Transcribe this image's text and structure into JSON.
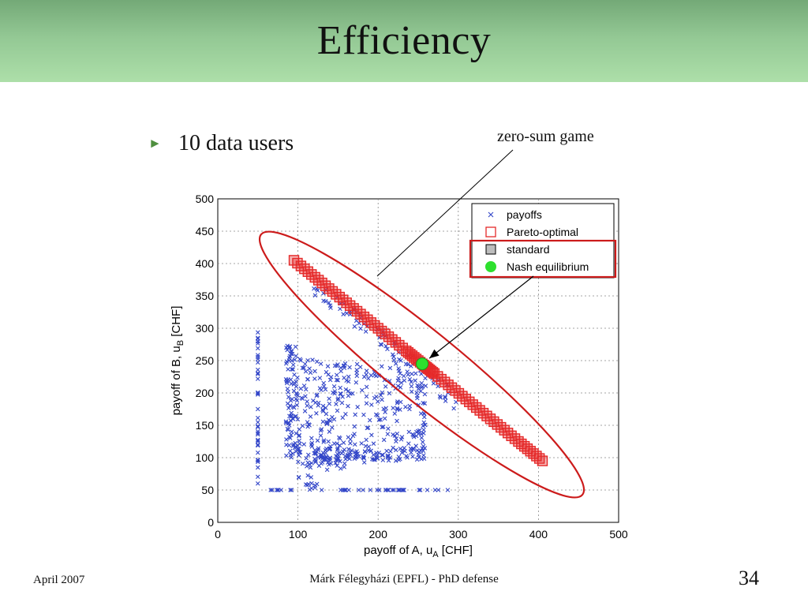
{
  "slide": {
    "title": "Efficiency",
    "bullet_icon": "triangle-right-icon",
    "bullet": "10 data users",
    "callout": "zero-sum game",
    "footer_left": "April 2007",
    "footer_center": "Márk Félegyházi (EPFL) - PhD defense",
    "page_number": "34"
  },
  "colors": {
    "title_band": "#93c894",
    "bullet": "#4f8f3f",
    "payoffs": "#3346c8",
    "pareto": "#e52828",
    "standard": "#bdbdbd",
    "nash": "#2ee02e",
    "ellipse": "#cc1b1b"
  },
  "chart_data": {
    "type": "scatter",
    "title": "",
    "xlabel": "payoff of A, u",
    "xlabel_sub": "A",
    "xlabel_unit": "[CHF]",
    "ylabel": "payoff of B, u",
    "ylabel_sub": "B",
    "ylabel_unit": "[CHF]",
    "xlim": [
      0,
      500
    ],
    "ylim": [
      0,
      500
    ],
    "xticks": [
      0,
      100,
      200,
      300,
      400,
      500
    ],
    "yticks": [
      0,
      50,
      100,
      150,
      200,
      250,
      300,
      350,
      400,
      450,
      500
    ],
    "grid": true,
    "legend_position": "top-right",
    "series": [
      {
        "name": "payoffs",
        "marker": "x",
        "clusters": [
          {
            "x": [
              50,
              50
            ],
            "y": [
              50,
              300
            ]
          },
          {
            "x": [
              85,
              100
            ],
            "y": [
              100,
              275
            ]
          },
          {
            "x": [
              100,
              130
            ],
            "y": [
              50,
              260
            ]
          },
          {
            "x": [
              130,
              160
            ],
            "y": [
              80,
              250
            ]
          },
          {
            "x": [
              160,
              220
            ],
            "y": [
              90,
              245
            ]
          },
          {
            "x": [
              220,
              260
            ],
            "y": [
              110,
              250
            ]
          },
          {
            "x": [
              60,
              290
            ],
            "y": [
              50,
              50
            ]
          },
          {
            "x": [
              120,
              260
            ],
            "y": [
              95,
              115
            ]
          },
          {
            "x": [
              120,
              300
            ],
            "y": [
              120,
              390
            ]
          }
        ]
      },
      {
        "name": "Pareto-optimal",
        "marker": "open-square",
        "x": [
          95,
          130,
          165,
          200,
          235,
          255,
          270,
          305,
          340,
          375,
          405
        ],
        "y": [
          405,
          370,
          335,
          300,
          265,
          245,
          230,
          195,
          160,
          125,
          95
        ]
      },
      {
        "name": "standard",
        "marker": "filled-square",
        "x": [],
        "y": []
      },
      {
        "name": "Nash equilibrium",
        "marker": "filled-circle",
        "x": [
          255
        ],
        "y": [
          245
        ]
      }
    ],
    "annotations": [
      {
        "text": "zero-sum game",
        "target": "Pareto-optimal frontier",
        "shape": "ellipse"
      },
      {
        "target": "standard and Nash equilibrium legend entries",
        "shape": "box",
        "arrow_to": "Nash equilibrium"
      }
    ]
  }
}
